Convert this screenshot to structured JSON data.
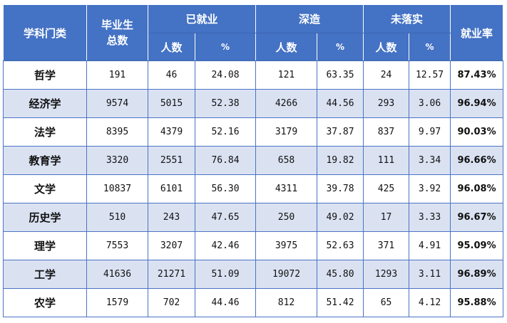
{
  "header": {
    "subject": "学科门类",
    "total": "毕业生总数",
    "employed": "已就业",
    "further_study": "深造",
    "not_placed": "未落实",
    "rate": "就业率",
    "count": "人数",
    "percent": "%"
  },
  "rows": [
    {
      "subject": "哲学",
      "total": "191",
      "emp_n": "46",
      "emp_p": "24.08",
      "study_n": "121",
      "study_p": "63.35",
      "unplaced_n": "24",
      "unplaced_p": "12.57",
      "rate": "87.43%"
    },
    {
      "subject": "经济学",
      "total": "9574",
      "emp_n": "5015",
      "emp_p": "52.38",
      "study_n": "4266",
      "study_p": "44.56",
      "unplaced_n": "293",
      "unplaced_p": "3.06",
      "rate": "96.94%"
    },
    {
      "subject": "法学",
      "total": "8395",
      "emp_n": "4379",
      "emp_p": "52.16",
      "study_n": "3179",
      "study_p": "37.87",
      "unplaced_n": "837",
      "unplaced_p": "9.97",
      "rate": "90.03%"
    },
    {
      "subject": "教育学",
      "total": "3320",
      "emp_n": "2551",
      "emp_p": "76.84",
      "study_n": "658",
      "study_p": "19.82",
      "unplaced_n": "111",
      "unplaced_p": "3.34",
      "rate": "96.66%"
    },
    {
      "subject": "文学",
      "total": "10837",
      "emp_n": "6101",
      "emp_p": "56.30",
      "study_n": "4311",
      "study_p": "39.78",
      "unplaced_n": "425",
      "unplaced_p": "3.92",
      "rate": "96.08%"
    },
    {
      "subject": "历史学",
      "total": "510",
      "emp_n": "243",
      "emp_p": "47.65",
      "study_n": "250",
      "study_p": "49.02",
      "unplaced_n": "17",
      "unplaced_p": "3.33",
      "rate": "96.67%"
    },
    {
      "subject": "理学",
      "total": "7553",
      "emp_n": "3207",
      "emp_p": "42.46",
      "study_n": "3975",
      "study_p": "52.63",
      "unplaced_n": "371",
      "unplaced_p": "4.91",
      "rate": "95.09%"
    },
    {
      "subject": "工学",
      "total": "41636",
      "emp_n": "21271",
      "emp_p": "51.09",
      "study_n": "19072",
      "study_p": "45.80",
      "unplaced_n": "1293",
      "unplaced_p": "3.11",
      "rate": "96.89%"
    },
    {
      "subject": "农学",
      "total": "1579",
      "emp_n": "702",
      "emp_p": "44.46",
      "study_n": "812",
      "study_p": "51.42",
      "unplaced_n": "65",
      "unplaced_p": "4.12",
      "rate": "95.88%"
    }
  ]
}
